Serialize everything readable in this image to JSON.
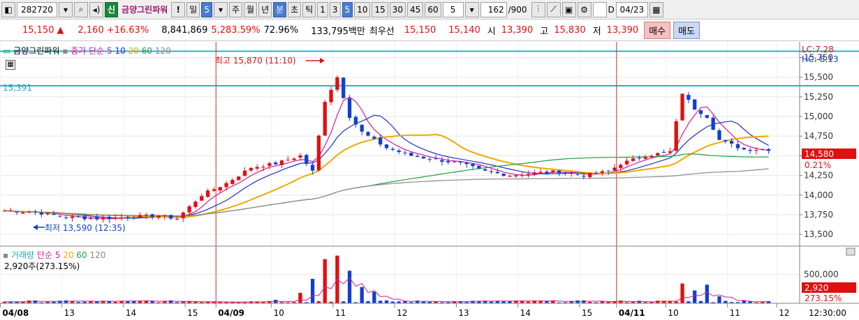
{
  "toolbar": {
    "code": "282720",
    "credit_badge": "신",
    "stock_name": "금양그린파워",
    "warn": "!",
    "period_day": "일",
    "period_num": "5",
    "week": "주",
    "month": "월",
    "year": "년",
    "minute": "분",
    "second": "초",
    "tick": "틱",
    "intervals": [
      "1",
      "3",
      "5",
      "10",
      "15",
      "30",
      "45",
      "60"
    ],
    "interval_selected": "5",
    "custom_interval": "5",
    "count": "162",
    "count_total": "/900",
    "date_checkbox": "D",
    "date": "04/23"
  },
  "info": {
    "price": "15,150",
    "change_arrow": "▲",
    "change": "2,160",
    "change_pct": "+16.63%",
    "volume": "8,841,869",
    "vol_ratio": "5,283.59%",
    "turnover": "72.96%",
    "trade_value": "133,795백만",
    "best_label": "최우선",
    "ask": "15,150",
    "bid": "15,140",
    "open_label": "시",
    "open": "13,390",
    "high_label": "고",
    "high": "15,830",
    "low_label": "저",
    "low": "13,390",
    "buy_btn": "매수",
    "sell_btn": "매도"
  },
  "chart_legend": {
    "name": "금양그린파워",
    "series": "종가 단순",
    "ma5": "5",
    "ma10": "10",
    "ma20": "20",
    "ma60": "60",
    "ma120": "120",
    "hline_label": "15,391",
    "high_note": "최고 15,870 (11:10)",
    "low_note": "최저 13,590 (12:35)",
    "lc": "LC:7.28",
    "hc": "HC:-8.13",
    "price_tag": "14,580",
    "pct_tag": "0.21%"
  },
  "volume_legend": {
    "series": "거래량",
    "kind": "단순",
    "ma5": "5",
    "ma20": "20",
    "ma60": "60",
    "ma120": "120",
    "readout": "2,920주(273.15%)",
    "tag": "2,920",
    "tag_pct": "273.15%"
  },
  "colors": {
    "up": "#e01010",
    "down": "#1040d0",
    "ma5": "#d81898",
    "ma10": "#2030c0",
    "ma20": "#f0a800",
    "ma60": "#20a040",
    "ma120": "#8a8a8a",
    "hline": "#20b8c8"
  },
  "chart_data": {
    "type": "candlestick",
    "y_axis_ticks": [
      "15,750",
      "15,500",
      "15,250",
      "15,000",
      "14,750",
      "14,500",
      "14,250",
      "14,000",
      "13,750",
      "13,500"
    ],
    "ylim": [
      13350,
      15950
    ],
    "volume_ticks": [
      "500,000"
    ],
    "volume_ylim": [
      0,
      900000
    ],
    "x_labels": [
      "04/08",
      "13",
      "14",
      "15",
      "04/09",
      "10",
      "11",
      "12",
      "13",
      "14",
      "15",
      "04/11",
      "10",
      "11",
      "12"
    ],
    "time_label": "12:30:00",
    "hlines": [
      15830,
      15391
    ],
    "close_path": [
      [
        0,
        13800
      ],
      [
        5,
        13780
      ],
      [
        10,
        13720
      ],
      [
        15,
        13700
      ],
      [
        20,
        13720
      ],
      [
        25,
        13740
      ],
      [
        28,
        13700
      ],
      [
        32,
        14000
      ],
      [
        36,
        14150
      ],
      [
        40,
        14350
      ],
      [
        44,
        14400
      ],
      [
        48,
        14500
      ],
      [
        50,
        14300
      ],
      [
        52,
        15200
      ],
      [
        54,
        15500
      ],
      [
        56,
        15000
      ],
      [
        58,
        14800
      ],
      [
        60,
        14700
      ],
      [
        62,
        14600
      ],
      [
        66,
        14500
      ],
      [
        70,
        14450
      ],
      [
        74,
        14400
      ],
      [
        78,
        14300
      ],
      [
        82,
        14250
      ],
      [
        86,
        14280
      ],
      [
        90,
        14300
      ],
      [
        94,
        14250
      ],
      [
        98,
        14300
      ],
      [
        100,
        14400
      ],
      [
        104,
        14500
      ],
      [
        108,
        14550
      ],
      [
        110,
        15300
      ],
      [
        112,
        15100
      ],
      [
        114,
        15000
      ],
      [
        116,
        14700
      ],
      [
        120,
        14580
      ],
      [
        124,
        14580
      ]
    ],
    "volume_spikes": [
      [
        44,
        60000
      ],
      [
        48,
        180000
      ],
      [
        50,
        420000
      ],
      [
        52,
        760000
      ],
      [
        54,
        820000
      ],
      [
        56,
        560000
      ],
      [
        58,
        280000
      ],
      [
        60,
        200000
      ],
      [
        110,
        340000
      ],
      [
        112,
        220000
      ],
      [
        114,
        320000
      ],
      [
        116,
        120000
      ]
    ]
  }
}
